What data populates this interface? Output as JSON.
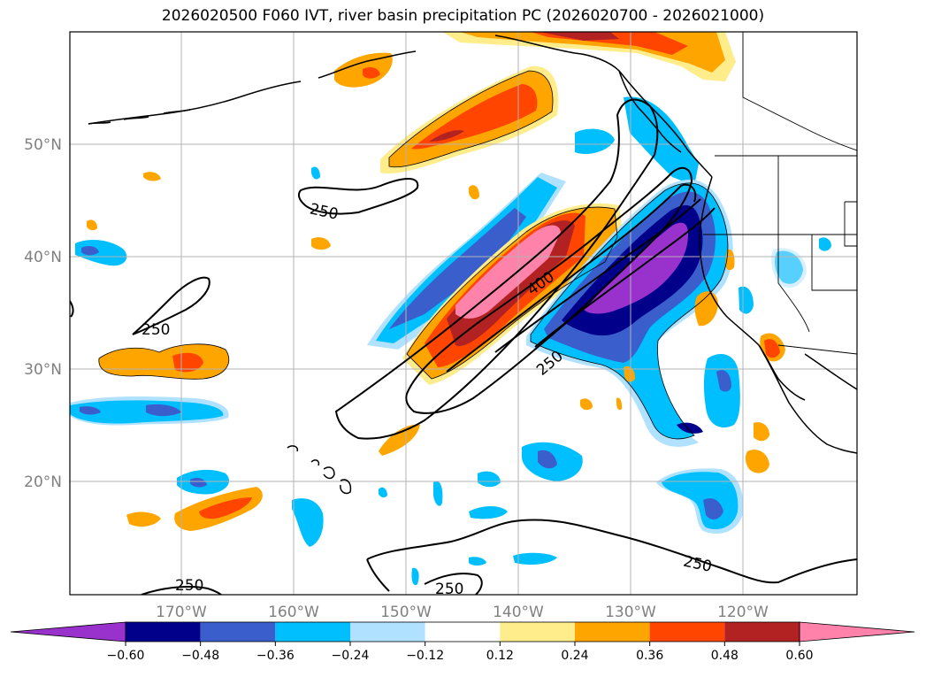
{
  "title": "2026020500 F060 IVT, river basin precipitation PC (2026020700 - 2026021000)",
  "lat_labels": [
    "50°N",
    "40°N",
    "30°N",
    "20°N"
  ],
  "lon_labels": [
    "170°W",
    "160°W",
    "150°W",
    "140°W",
    "130°W",
    "120°W"
  ],
  "contour_labels": [
    "250",
    "400",
    "250",
    "250",
    "250",
    "250",
    "250"
  ],
  "colorbar": {
    "colors": [
      "#9932cc",
      "#00008b",
      "#3a5fcd",
      "#00bfff",
      "#b0e2ff",
      "#ffffff",
      "#ffec8b",
      "#ffa500",
      "#ff4500",
      "#b22222",
      "#ff82ab"
    ],
    "ticks": [
      "−0.60",
      "−0.48",
      "−0.36",
      "−0.24",
      "−0.12",
      "0.12",
      "0.24",
      "0.36",
      "0.48",
      "0.60"
    ]
  },
  "colors": {
    "gridline": "#b3b3b3",
    "coastline": "#000000",
    "ivt_contour": "#000000",
    "axis_label": "#808080"
  }
}
